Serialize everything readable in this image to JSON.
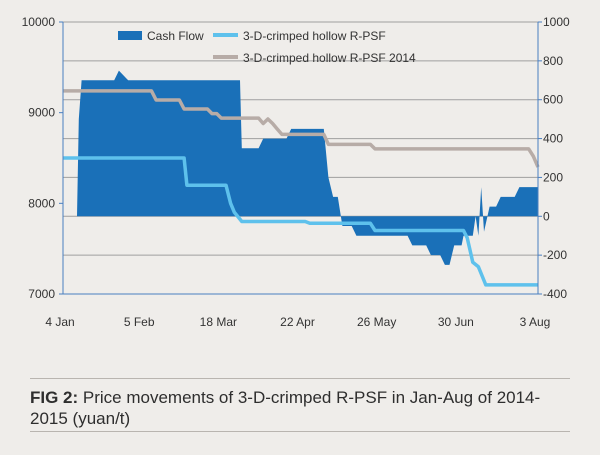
{
  "chart_data": {
    "type": "line",
    "title": "",
    "xlabel": "",
    "ylabel": "",
    "categories": [
      "4 Jan",
      "5 Feb",
      "18 Mar",
      "22 Apr",
      "26 May",
      "30 Jun",
      "3 Aug"
    ],
    "left_axis": {
      "ylim": [
        7000,
        10000
      ],
      "ticks": [
        "7000",
        "8000",
        "9000",
        "10000"
      ]
    },
    "right_axis": {
      "ylim": [
        -400,
        1000
      ],
      "ticks": [
        "-400",
        "-200",
        "0",
        "200",
        "400",
        "600",
        "800",
        "1000"
      ]
    },
    "grid": true,
    "legend_position": "top",
    "series": [
      {
        "name": "Cash Flow",
        "type": "area",
        "axis": "right",
        "color": "#1a70b8",
        "points": [
          [
            0,
            0
          ],
          [
            1.5,
            0
          ],
          [
            1.7,
            500
          ],
          [
            2,
            700
          ],
          [
            5.5,
            700
          ],
          [
            6,
            750
          ],
          [
            7,
            700
          ],
          [
            19,
            700
          ],
          [
            19.2,
            350
          ],
          [
            21,
            350
          ],
          [
            21.5,
            400
          ],
          [
            24,
            400
          ],
          [
            24.5,
            450
          ],
          [
            28,
            450
          ],
          [
            28.5,
            200
          ],
          [
            29,
            100
          ],
          [
            29.5,
            100
          ],
          [
            30,
            -50
          ],
          [
            31,
            -50
          ],
          [
            31.5,
            -100
          ],
          [
            37,
            -100
          ],
          [
            37.5,
            -150
          ],
          [
            39,
            -150
          ],
          [
            39.5,
            -200
          ],
          [
            40.5,
            -200
          ],
          [
            41,
            -250
          ],
          [
            41.5,
            -250
          ],
          [
            42,
            -150
          ],
          [
            42.8,
            -150
          ],
          [
            43,
            -100
          ],
          [
            44,
            -100
          ],
          [
            44.3,
            0
          ],
          [
            44.6,
            -100
          ],
          [
            44.9,
            150
          ],
          [
            45.2,
            -80
          ],
          [
            45.8,
            50
          ],
          [
            46.5,
            50
          ],
          [
            47,
            100
          ],
          [
            48.5,
            100
          ],
          [
            49,
            150
          ],
          [
            51,
            150
          ],
          [
            51,
            0
          ]
        ]
      },
      {
        "name": "3-D-crimped hollow R-PSF",
        "axis": "left",
        "color": "#5ec1ec",
        "points": [
          [
            0,
            8500
          ],
          [
            13,
            8500
          ],
          [
            13.3,
            8200
          ],
          [
            17.5,
            8200
          ],
          [
            18,
            8000
          ],
          [
            18.4,
            7900
          ],
          [
            18.8,
            7850
          ],
          [
            19.2,
            7800
          ],
          [
            19.5,
            7800
          ],
          [
            26,
            7800
          ],
          [
            26.5,
            7780
          ],
          [
            33,
            7780
          ],
          [
            33.5,
            7700
          ],
          [
            43,
            7700
          ],
          [
            43.4,
            7620
          ],
          [
            44,
            7350
          ],
          [
            44.6,
            7300
          ],
          [
            45,
            7200
          ],
          [
            45.4,
            7100
          ],
          [
            51,
            7100
          ]
        ]
      },
      {
        "name": "3-D-crimped hollow R-PSF 2014",
        "axis": "left",
        "color": "#b7aca7",
        "points": [
          [
            0,
            9240
          ],
          [
            9.5,
            9240
          ],
          [
            10,
            9140
          ],
          [
            12.5,
            9140
          ],
          [
            13,
            9040
          ],
          [
            15.5,
            9040
          ],
          [
            16,
            8990
          ],
          [
            16.5,
            8990
          ],
          [
            17,
            8940
          ],
          [
            21,
            8940
          ],
          [
            21.5,
            8880
          ],
          [
            22,
            8930
          ],
          [
            22.5,
            8880
          ],
          [
            23,
            8820
          ],
          [
            23.5,
            8760
          ],
          [
            24,
            8760
          ],
          [
            24.5,
            8760
          ],
          [
            28,
            8760
          ],
          [
            28.5,
            8650
          ],
          [
            33,
            8650
          ],
          [
            33.5,
            8600
          ],
          [
            50,
            8600
          ],
          [
            50.5,
            8520
          ],
          [
            51,
            8400
          ]
        ]
      }
    ]
  },
  "caption": {
    "label": "FIG 2:",
    "text": " Price movements of 3-D-crimped R-PSF in Jan-Aug of 2014-2015 (yuan/t)"
  }
}
